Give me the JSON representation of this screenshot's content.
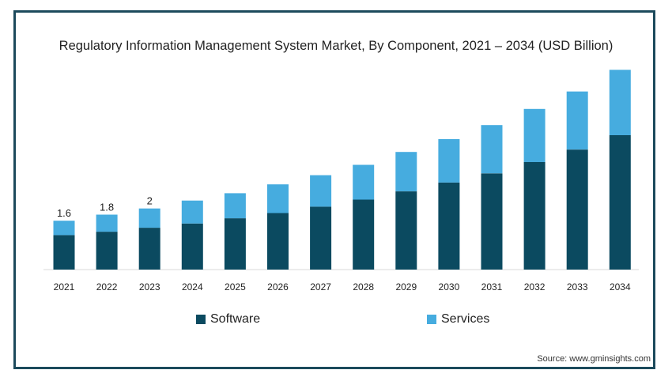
{
  "chart_data": {
    "type": "bar",
    "stacked": true,
    "title": "Regulatory Information Management System Market, By Component, 2021 – 2034 (USD Billion)",
    "categories": [
      "2021",
      "2022",
      "2023",
      "2024",
      "2025",
      "2026",
      "2027",
      "2028",
      "2029",
      "2030",
      "2031",
      "2032",
      "2033",
      "2034"
    ],
    "series": [
      {
        "name": "Software",
        "color": "#0b4a60",
        "values": [
          1.13,
          1.24,
          1.37,
          1.51,
          1.68,
          1.85,
          2.06,
          2.29,
          2.56,
          2.85,
          3.15,
          3.52,
          3.93,
          4.4
        ]
      },
      {
        "name": "Services",
        "color": "#46acdf",
        "values": [
          0.47,
          0.56,
          0.63,
          0.75,
          0.82,
          0.94,
          1.03,
          1.14,
          1.29,
          1.42,
          1.58,
          1.74,
          1.9,
          2.14
        ]
      }
    ],
    "data_labels": {
      "2021": "1.6",
      "2022": "1.8",
      "2023": "2"
    },
    "ylim": [
      0,
      6.6
    ],
    "grid": false,
    "legend_position": "bottom"
  },
  "source": "Source: www.gminsights.com"
}
